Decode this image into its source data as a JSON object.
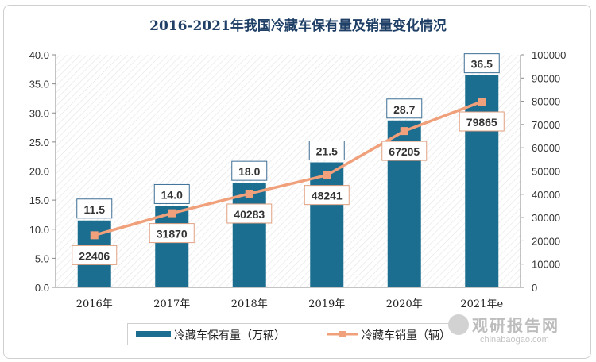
{
  "title": "2016-2021年我国冷藏车保有量及销量变化情况",
  "chart_data": {
    "type": "bar+line",
    "categories": [
      "2016年",
      "2017年",
      "2018年",
      "2019年",
      "2020年",
      "2021年e"
    ],
    "series": [
      {
        "name": "冷藏车保有量（万辆）",
        "type": "bar",
        "axis": "left",
        "values": [
          11.5,
          14.0,
          18.0,
          21.5,
          28.7,
          36.5
        ],
        "labels": [
          "11.5",
          "14.0",
          "18.0",
          "21.5",
          "28.7",
          "36.5"
        ],
        "color": "#1c6e91"
      },
      {
        "name": "冷藏车销量（辆）",
        "type": "line",
        "axis": "right",
        "values": [
          22406,
          31870,
          40283,
          48241,
          67205,
          79865
        ],
        "labels": [
          "22406",
          "31870",
          "40283",
          "48241",
          "67205",
          "79865"
        ],
        "color": "#f0a07a"
      }
    ],
    "y_left": {
      "min": 0,
      "max": 40,
      "ticks": [
        "0.0",
        "5.0",
        "10.0",
        "15.0",
        "20.0",
        "25.0",
        "30.0",
        "35.0",
        "40.0"
      ]
    },
    "y_right": {
      "min": 0,
      "max": 100000,
      "ticks": [
        "0",
        "10000",
        "20000",
        "30000",
        "40000",
        "50000",
        "60000",
        "70000",
        "80000",
        "90000",
        "100000"
      ]
    },
    "legend_position": "bottom"
  },
  "legend": {
    "bar_label": "冷藏车保有量（万辆）",
    "line_label": "冷藏车销量（辆）"
  },
  "watermark": {
    "main": "观研报告网",
    "sub": "chinabaogao.com"
  }
}
